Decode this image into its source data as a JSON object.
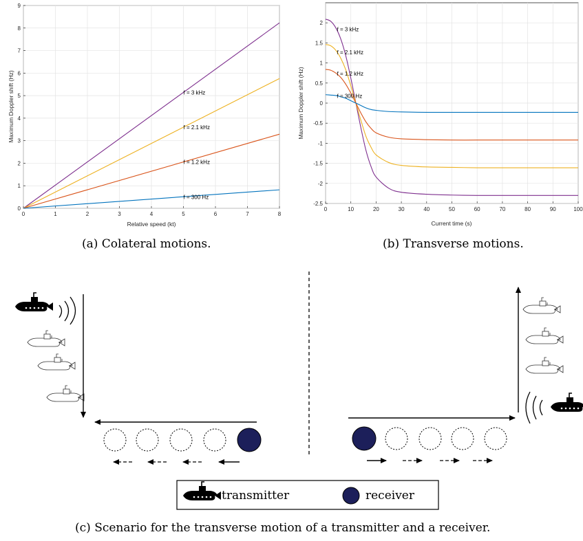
{
  "captions": {
    "a": "(a) Colateral motions.",
    "b": "(b) Transverse motions.",
    "c": "(c) Scenario for the transverse motion of a transmitter and a receiver."
  },
  "legend": {
    "transmitter": "transmitter",
    "receiver": "receiver"
  },
  "colors": {
    "purple": "#7e2f8e",
    "yellow": "#edb120",
    "orange": "#d95319",
    "blue": "#0072bd",
    "receiver_fill": "#1c1f5a"
  },
  "chart_data": [
    {
      "type": "line",
      "title": "",
      "xlabel": "Relative speed (kt)",
      "ylabel": "Maximum Doppler shift (Hz)",
      "xlim": [
        0,
        8
      ],
      "ylim": [
        0,
        9
      ],
      "xticks": [
        0,
        1,
        2,
        3,
        4,
        5,
        6,
        7,
        8
      ],
      "yticks": [
        0,
        1,
        2,
        3,
        4,
        5,
        6,
        7,
        8,
        9
      ],
      "grid": true,
      "series": [
        {
          "name": "f = 3 kHz",
          "color": "#7e2f8e",
          "x": [
            0,
            8
          ],
          "y": [
            0,
            8.23
          ]
        },
        {
          "name": "f = 2.1 kHz",
          "color": "#edb120",
          "x": [
            0,
            8
          ],
          "y": [
            0,
            5.76
          ]
        },
        {
          "name": "f = 1.2 kHz",
          "color": "#d95319",
          "x": [
            0,
            8
          ],
          "y": [
            0,
            3.29
          ]
        },
        {
          "name": "f = 300 Hz",
          "color": "#0072bd",
          "x": [
            0,
            8
          ],
          "y": [
            0,
            0.82
          ]
        }
      ],
      "annotations": [
        {
          "text": "f = 3 kHz",
          "x": 5,
          "y": 5.14
        },
        {
          "text": "f = 2.1 kHz",
          "x": 5,
          "y": 3.6
        },
        {
          "text": "f = 1.2 kHz",
          "x": 5,
          "y": 2.06
        },
        {
          "text": "f = 300 Hz",
          "x": 5,
          "y": 0.51
        }
      ]
    },
    {
      "type": "line",
      "title": "",
      "xlabel": "Current time (s)",
      "ylabel": "Maximum Doppler shift (Hz)",
      "xlim": [
        0,
        100
      ],
      "ylim": [
        -2.5,
        2.5
      ],
      "xticks": [
        0,
        10,
        20,
        30,
        40,
        50,
        60,
        70,
        80,
        90,
        100
      ],
      "yticks": [
        -2.5,
        -2,
        -1.5,
        -1,
        -0.5,
        0,
        0.5,
        1,
        1.5,
        2
      ],
      "grid": true,
      "series": [
        {
          "name": "f = 3 kHz",
          "color": "#7e2f8e",
          "x": [
            0,
            2,
            4,
            6,
            8,
            10,
            12,
            14,
            16,
            18,
            20,
            25,
            30,
            40,
            50,
            60,
            70,
            80,
            90,
            100
          ],
          "y": [
            2.09,
            2.04,
            1.88,
            1.6,
            1.18,
            0.62,
            0.0,
            -0.62,
            -1.18,
            -1.58,
            -1.84,
            -2.12,
            -2.22,
            -2.27,
            -2.29,
            -2.3,
            -2.3,
            -2.3,
            -2.3,
            -2.3
          ]
        },
        {
          "name": "f = 2.1 kHz",
          "color": "#edb120",
          "x": [
            0,
            2,
            4,
            6,
            8,
            10,
            12,
            14,
            16,
            18,
            20,
            25,
            30,
            40,
            50,
            60,
            70,
            80,
            90,
            100
          ],
          "y": [
            1.46,
            1.43,
            1.32,
            1.12,
            0.83,
            0.43,
            0.0,
            -0.43,
            -0.83,
            -1.1,
            -1.29,
            -1.48,
            -1.55,
            -1.59,
            -1.6,
            -1.61,
            -1.61,
            -1.61,
            -1.61,
            -1.61
          ]
        },
        {
          "name": "f = 1.2 kHz",
          "color": "#d95319",
          "x": [
            0,
            2,
            4,
            6,
            8,
            10,
            12,
            14,
            16,
            18,
            20,
            25,
            30,
            40,
            50,
            60,
            70,
            80,
            90,
            100
          ],
          "y": [
            0.84,
            0.82,
            0.75,
            0.64,
            0.47,
            0.25,
            0.0,
            -0.25,
            -0.47,
            -0.63,
            -0.74,
            -0.85,
            -0.89,
            -0.91,
            -0.92,
            -0.92,
            -0.92,
            -0.92,
            -0.92,
            -0.92
          ]
        },
        {
          "name": "f = 300 Hz",
          "color": "#0072bd",
          "x": [
            0,
            2,
            4,
            6,
            8,
            10,
            12,
            14,
            16,
            18,
            20,
            25,
            30,
            40,
            50,
            60,
            70,
            80,
            90,
            100
          ],
          "y": [
            0.21,
            0.2,
            0.19,
            0.16,
            0.12,
            0.06,
            0.0,
            -0.06,
            -0.12,
            -0.16,
            -0.18,
            -0.21,
            -0.22,
            -0.23,
            -0.23,
            -0.23,
            -0.23,
            -0.23,
            -0.23,
            -0.23
          ]
        }
      ],
      "annotations": [
        {
          "text": "f = 3 kHz",
          "x": 4.5,
          "y": 1.84
        },
        {
          "text": "f = 2.1 kHz",
          "x": 4.5,
          "y": 1.27
        },
        {
          "text": "f = 1.2 kHz",
          "x": 4.5,
          "y": 0.74
        },
        {
          "text": "f = 300 Hz",
          "x": 4.5,
          "y": 0.18
        }
      ]
    }
  ]
}
